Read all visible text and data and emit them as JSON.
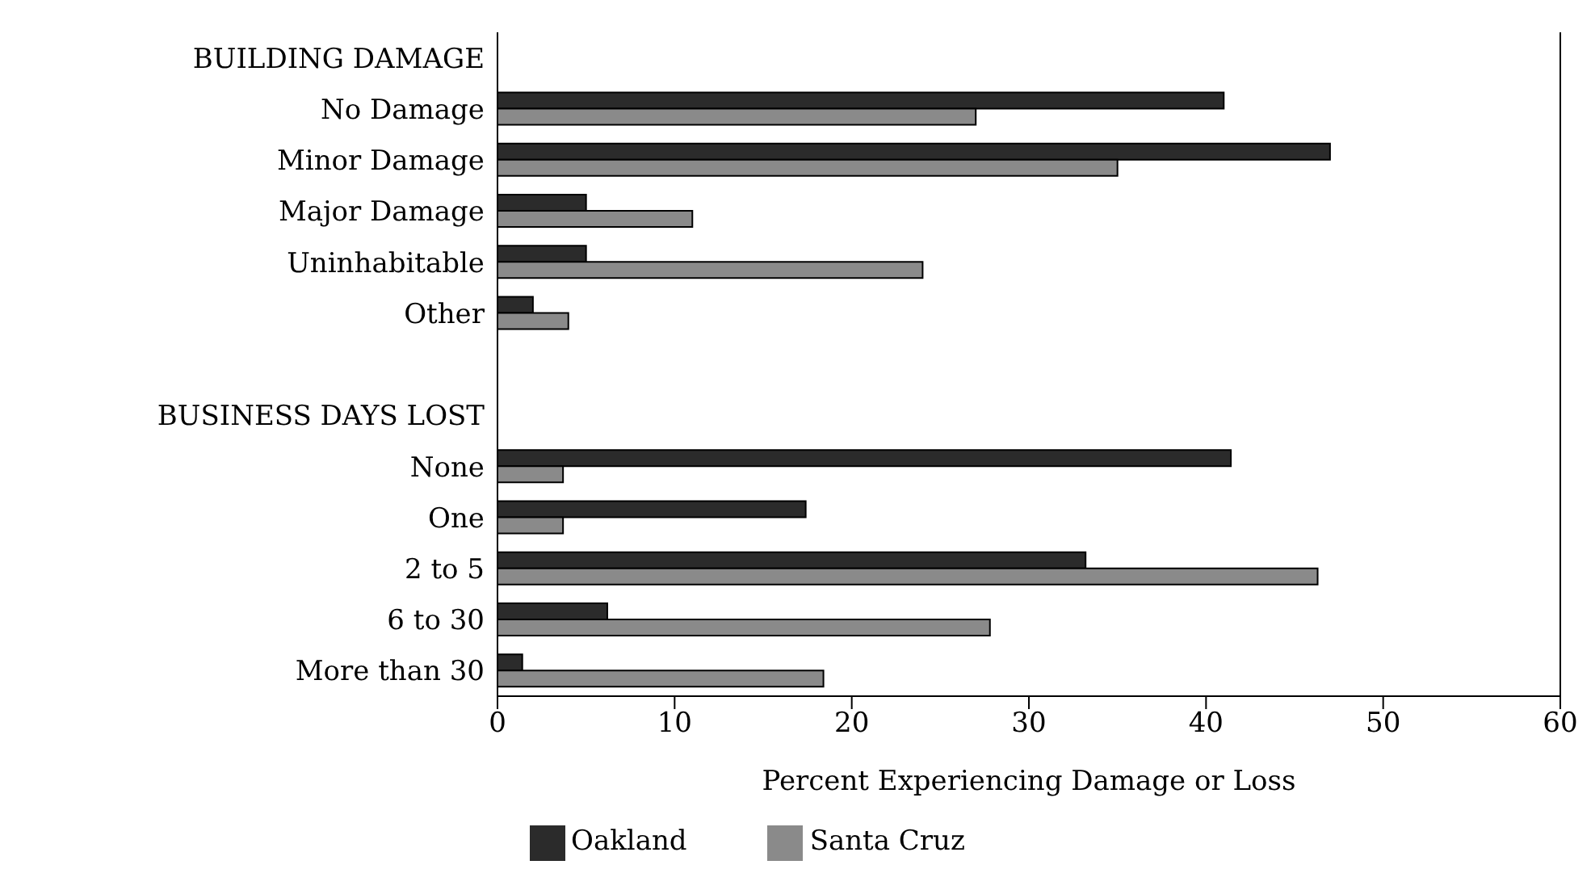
{
  "chart_data": {
    "type": "bar",
    "orientation": "horizontal",
    "xlabel": "Percent Experiencing Damage or Loss",
    "categories": [
      "BUILDING DAMAGE",
      "No Damage",
      "Minor Damage",
      "Major Damage",
      "Uninhabitable",
      "Other",
      null,
      "BUSINESS DAYS LOST",
      "None",
      "One",
      "2 to 5",
      "6 to 30",
      "More than 30"
    ],
    "series": [
      {
        "name": "Oakland",
        "color": "#2b2b2b",
        "values": [
          null,
          41,
          47,
          5,
          5,
          2,
          null,
          null,
          41.4,
          17.4,
          33.2,
          6.2,
          1.4
        ]
      },
      {
        "name": "Santa Cruz",
        "color": "#8a8a8a",
        "values": [
          null,
          27,
          35,
          11,
          24,
          4,
          null,
          null,
          3.7,
          3.7,
          46.3,
          27.8,
          18.4
        ]
      }
    ],
    "xlim": [
      0,
      60
    ],
    "xticks": [
      0,
      10,
      20,
      30,
      40,
      50,
      60
    ],
    "grid": false,
    "legend": "bottom"
  }
}
